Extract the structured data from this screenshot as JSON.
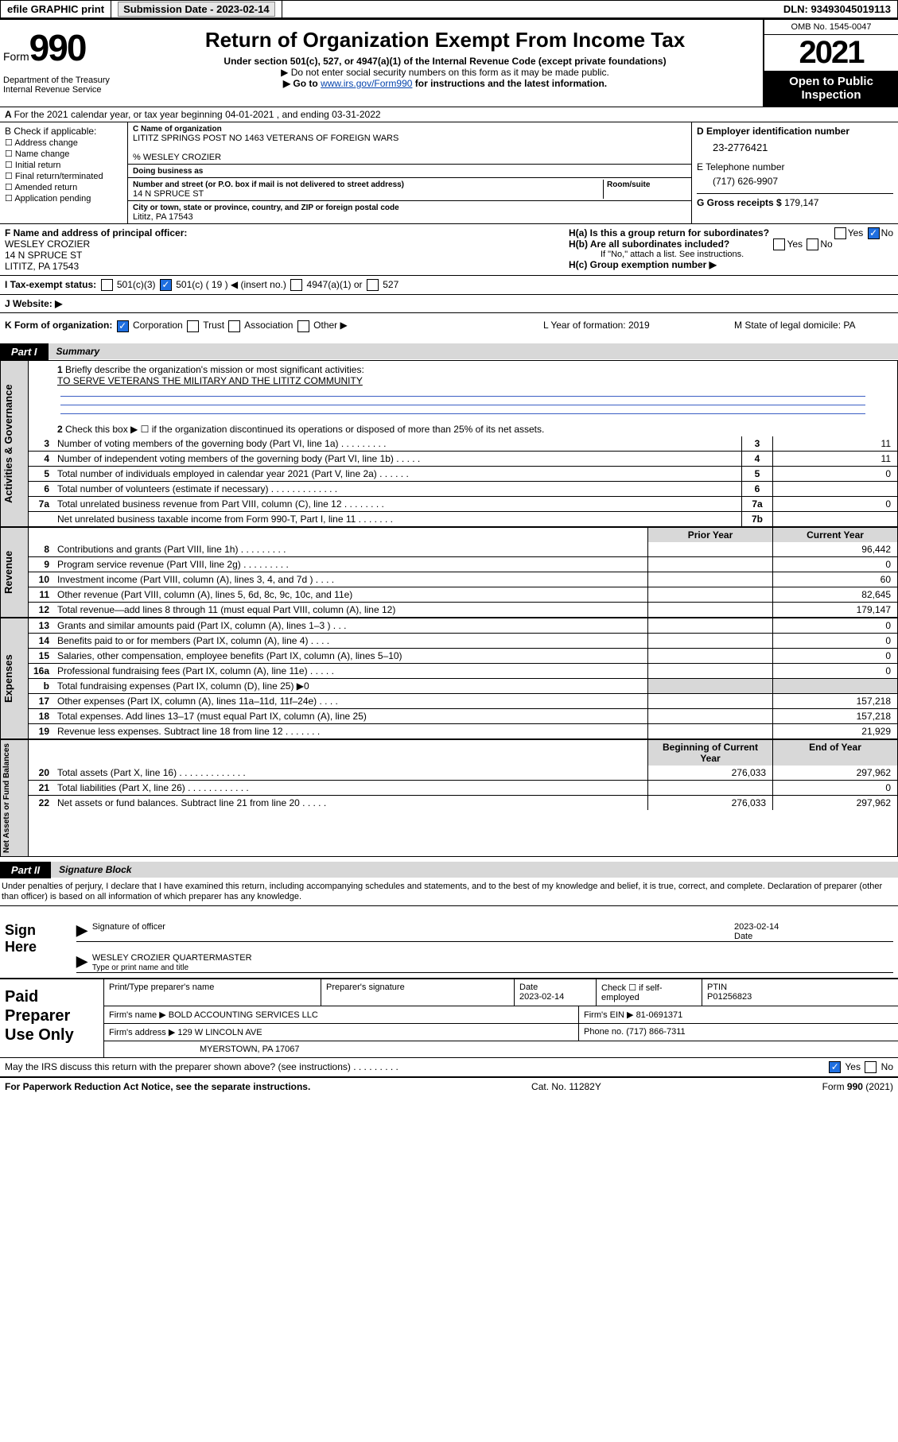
{
  "topbar": {
    "efile": "efile GRAPHIC print",
    "submission_label": "Submission Date - 2023-02-14",
    "dln_label": "DLN: 93493045019113"
  },
  "header": {
    "form_word": "Form",
    "form_number": "990",
    "dept": "Department of the Treasury\nInternal Revenue Service",
    "title": "Return of Organization Exempt From Income Tax",
    "subtitle": "Under section 501(c), 527, or 4947(a)(1) of the Internal Revenue Code (except private foundations)",
    "note1": "▶ Do not enter social security numbers on this form as it may be made public.",
    "note2_pre": "▶ Go to ",
    "note2_link": "www.irs.gov/Form990",
    "note2_post": " for instructions and the latest information.",
    "omb": "OMB No. 1545-0047",
    "year": "2021",
    "inspect": "Open to Public Inspection"
  },
  "A": "For the 2021 calendar year, or tax year beginning 04-01-2021     , and ending 03-31-2022",
  "B": {
    "label": "B Check if applicable:",
    "items": [
      "Address change",
      "Name change",
      "Initial return",
      "Final return/terminated",
      "Amended return",
      "Application pending"
    ]
  },
  "C": {
    "name_lbl": "C Name of organization",
    "name": "LITITZ SPRINGS POST NO 1463 VETERANS OF FOREIGN WARS",
    "pct": "% WESLEY CROZIER",
    "dba_lbl": "Doing business as",
    "street_lbl": "Number and street (or P.O. box if mail is not delivered to street address)",
    "room_lbl": "Room/suite",
    "street": "14 N SPRUCE ST",
    "city_lbl": "City or town, state or province, country, and ZIP or foreign postal code",
    "city": "Lititz, PA  17543"
  },
  "D": {
    "label": "D Employer identification number",
    "ein": "23-2776421"
  },
  "E": {
    "label": "E Telephone number",
    "phone": "(717) 626-9907"
  },
  "G": {
    "label": "G Gross receipts $",
    "val": "179,147"
  },
  "F": {
    "label": "F  Name and address of principal officer:",
    "name": "WESLEY CROZIER",
    "street": "14 N SPRUCE ST",
    "city": "LITITZ, PA  17543"
  },
  "H": {
    "a": "H(a)  Is this a group return for subordinates?",
    "b": "H(b)  Are all subordinates included?",
    "note": "If \"No,\" attach a list. See instructions.",
    "c": "H(c)  Group exemption number ▶",
    "yes": "Yes",
    "no": "No"
  },
  "I": {
    "label": "I     Tax-exempt status:",
    "opts": [
      "501(c)(3)",
      "501(c) ( 19 ) ◀ (insert no.)",
      "4947(a)(1) or",
      "527"
    ]
  },
  "J": {
    "label": "J     Website: ▶"
  },
  "K": {
    "label": "K Form of organization:",
    "opts": [
      "Corporation",
      "Trust",
      "Association",
      "Other ▶"
    ]
  },
  "L": {
    "label": "L Year of formation: 2019"
  },
  "M": {
    "label": "M State of legal domicile: PA"
  },
  "part1": {
    "tab": "Part I",
    "title": "Summary"
  },
  "summary": {
    "line1": "Briefly describe the organization's mission or most significant activities:",
    "mission": "TO SERVE VETERANS THE MILITARY AND THE LITITZ COMMUNITY",
    "line2": "Check this box ▶ ☐  if the organization discontinued its operations or disposed of more than 25% of its net assets.",
    "rows_gov": [
      {
        "n": "3",
        "d": "Number of voting members of the governing body (Part VI, line 1a)  .   .   .   .   .   .   .   .   .",
        "b": "3",
        "v": "11"
      },
      {
        "n": "4",
        "d": "Number of independent voting members of the governing body (Part VI, line 1b)  .   .   .   .   .",
        "b": "4",
        "v": "11"
      },
      {
        "n": "5",
        "d": "Total number of individuals employed in calendar year 2021 (Part V, line 2a)  .   .   .   .   .   .",
        "b": "5",
        "v": "0"
      },
      {
        "n": "6",
        "d": "Total number of volunteers (estimate if necessary)  .   .   .   .   .   .   .   .   .   .   .   .   .",
        "b": "6",
        "v": ""
      },
      {
        "n": "7a",
        "d": "Total unrelated business revenue from Part VIII, column (C), line 12  .   .   .   .   .   .   .   .",
        "b": "7a",
        "v": "0"
      },
      {
        "n": "",
        "d": "Net unrelated business taxable income from Form 990-T, Part I, line 11  .   .   .   .   .   .   .",
        "b": "7b",
        "v": ""
      }
    ],
    "hdr_prior": "Prior Year",
    "hdr_curr": "Current Year",
    "rows_rev": [
      {
        "n": "8",
        "d": "Contributions and grants (Part VIII, line 1h)   .   .   .   .   .   .   .   .   .",
        "p": "",
        "c": "96,442"
      },
      {
        "n": "9",
        "d": "Program service revenue (Part VIII, line 2g)   .   .   .   .   .   .   .   .   .",
        "p": "",
        "c": "0"
      },
      {
        "n": "10",
        "d": "Investment income (Part VIII, column (A), lines 3, 4, and 7d )   .   .   .   .",
        "p": "",
        "c": "60"
      },
      {
        "n": "11",
        "d": "Other revenue (Part VIII, column (A), lines 5, 6d, 8c, 9c, 10c, and 11e)",
        "p": "",
        "c": "82,645"
      },
      {
        "n": "12",
        "d": "Total revenue—add lines 8 through 11 (must equal Part VIII, column (A), line 12)",
        "p": "",
        "c": "179,147"
      }
    ],
    "rows_exp": [
      {
        "n": "13",
        "d": "Grants and similar amounts paid (Part IX, column (A), lines 1–3 )   .   .   .",
        "p": "",
        "c": "0"
      },
      {
        "n": "14",
        "d": "Benefits paid to or for members (Part IX, column (A), line 4)   .   .   .   .",
        "p": "",
        "c": "0"
      },
      {
        "n": "15",
        "d": "Salaries, other compensation, employee benefits (Part IX, column (A), lines 5–10)",
        "p": "",
        "c": "0"
      },
      {
        "n": "16a",
        "d": "Professional fundraising fees (Part IX, column (A), line 11e)   .   .   .   .   .",
        "p": "",
        "c": "0"
      },
      {
        "n": "b",
        "d": "Total fundraising expenses (Part IX, column (D), line 25) ▶0",
        "p": "",
        "c": "",
        "shade": true
      },
      {
        "n": "17",
        "d": "Other expenses (Part IX, column (A), lines 11a–11d, 11f–24e)   .   .   .   .",
        "p": "",
        "c": "157,218"
      },
      {
        "n": "18",
        "d": "Total expenses. Add lines 13–17 (must equal Part IX, column (A), line 25)",
        "p": "",
        "c": "157,218"
      },
      {
        "n": "19",
        "d": "Revenue less expenses. Subtract line 18 from line 12  .   .   .   .   .   .   .",
        "p": "",
        "c": "21,929"
      }
    ],
    "hdr_beg": "Beginning of Current Year",
    "hdr_end": "End of Year",
    "rows_net": [
      {
        "n": "20",
        "d": "Total assets (Part X, line 16)  .   .   .   .   .   .   .   .   .   .   .   .   .",
        "p": "276,033",
        "c": "297,962"
      },
      {
        "n": "21",
        "d": "Total liabilities (Part X, line 26)   .   .   .   .   .   .   .   .   .   .   .   .",
        "p": "",
        "c": "0"
      },
      {
        "n": "22",
        "d": "Net assets or fund balances. Subtract line 21 from line 20  .   .   .   .   .",
        "p": "276,033",
        "c": "297,962"
      }
    ],
    "vlabels": {
      "gov": "Activities & Governance",
      "rev": "Revenue",
      "exp": "Expenses",
      "net": "Net Assets or Fund Balances"
    }
  },
  "part2": {
    "tab": "Part II",
    "title": "Signature Block"
  },
  "sig": {
    "declare": "Under penalties of perjury, I declare that I have examined this return, including accompanying schedules and statements, and to the best of my knowledge and belief, it is true, correct, and complete. Declaration of preparer (other than officer) is based on all information of which preparer has any knowledge.",
    "sign_here": "Sign Here",
    "sig_officer": "Signature of officer",
    "date": "2023-02-14",
    "date_lbl": "Date",
    "name": "WESLEY CROZIER QUARTERMASTER",
    "name_lbl": "Type or print name and title"
  },
  "paid": {
    "label": "Paid Preparer Use Only",
    "hdr": [
      "Print/Type preparer's name",
      "Preparer's signature",
      "Date",
      "Check ☐ if self-employed",
      "PTIN"
    ],
    "row1": [
      "",
      "",
      "2023-02-14",
      "",
      "P01256823"
    ],
    "firm_name_lbl": "Firm's name     ▶",
    "firm_name": "BOLD ACCOUNTING SERVICES LLC",
    "firm_ein_lbl": "Firm's EIN ▶",
    "firm_ein": "81-0691371",
    "firm_addr_lbl": "Firm's address ▶",
    "firm_addr": "129 W LINCOLN AVE",
    "firm_addr2": "MYERSTOWN, PA  17067",
    "phone_lbl": "Phone no.",
    "phone": "(717) 866-7311"
  },
  "footer": {
    "may": "May the IRS discuss this return with the preparer shown above? (see instructions)   .   .   .   .   .   .   .   .   .",
    "yes": "Yes",
    "no": "No",
    "paperwork": "For Paperwork Reduction Act Notice, see the separate instructions.",
    "cat": "Cat. No. 11282Y",
    "form": "Form 990 (2021)"
  }
}
